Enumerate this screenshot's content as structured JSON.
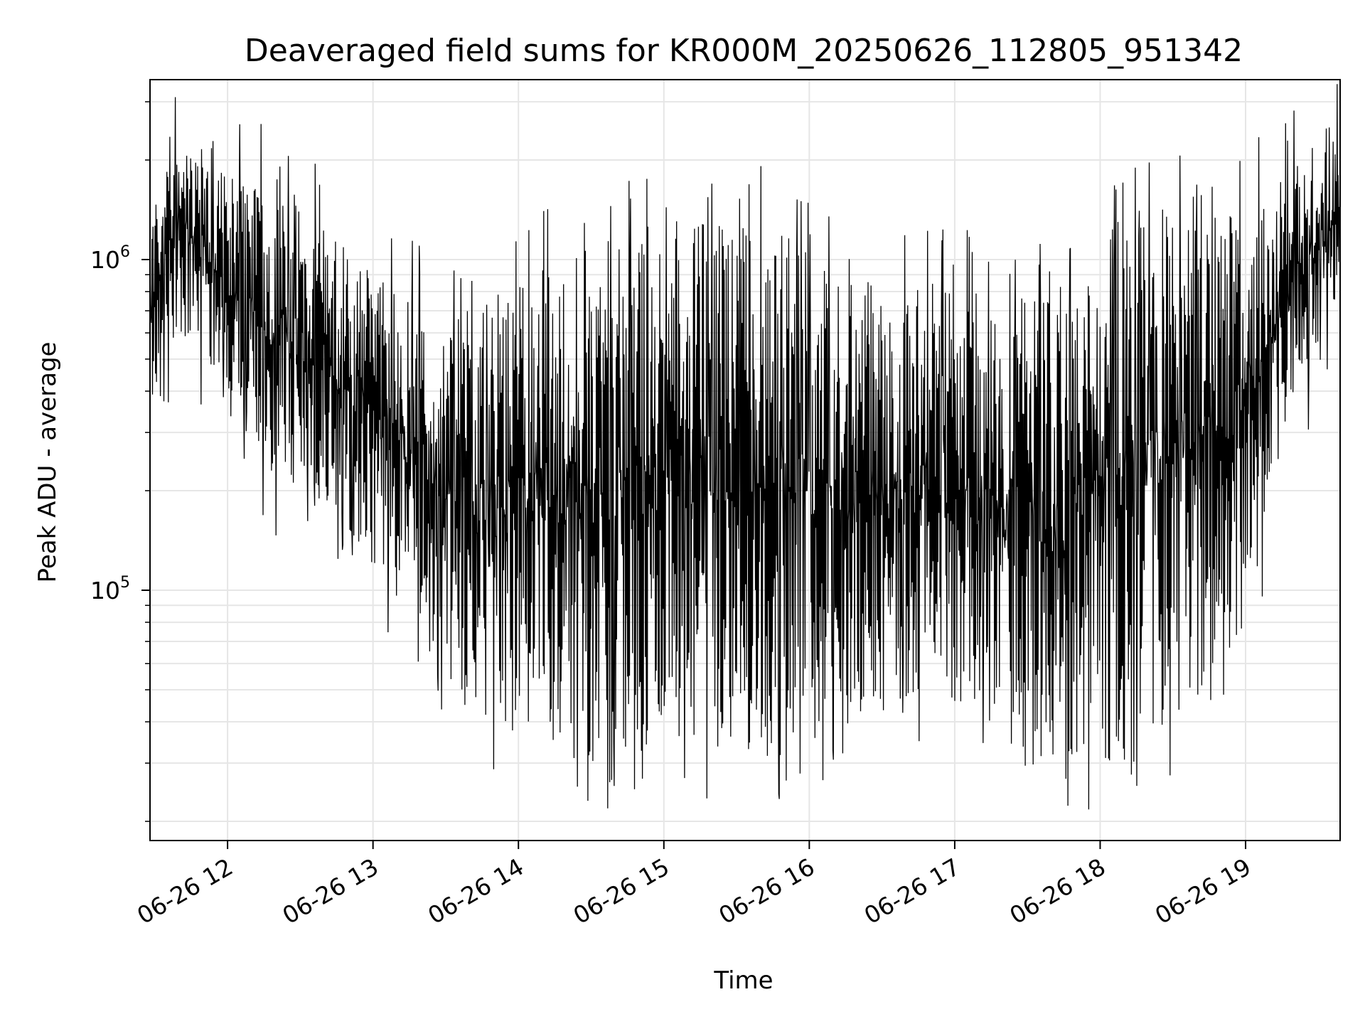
{
  "chart_data": {
    "type": "line",
    "title": "Deaveraged field sums for KR000M_20250626_112805_951342",
    "xlabel": "Time",
    "ylabel": "Peak ADU - average",
    "y_scale": "log",
    "ylim": [
      17500,
      3500000
    ],
    "xlim": [
      "06-26 11:28",
      "06-26 19:39"
    ],
    "x_ticks": [
      "06-26 12",
      "06-26 13",
      "06-26 14",
      "06-26 15",
      "06-26 16",
      "06-26 17",
      "06-26 18",
      "06-26 19"
    ],
    "y_ticks": [
      {
        "base": "10",
        "exp": "5",
        "value": 100000
      },
      {
        "base": "10",
        "exp": "6",
        "value": 1000000
      }
    ],
    "grid": true,
    "line_color": "#000000",
    "series": [
      {
        "x": [
          "06-26 11:28",
          "06-26 11:40",
          "06-26 12:00",
          "06-26 12:20",
          "06-26 12:40",
          "06-26 13:00",
          "06-26 13:20",
          "06-26 13:40",
          "06-26 14:00",
          "06-26 14:20",
          "06-26 14:40",
          "06-26 15:00",
          "06-26 15:20",
          "06-26 15:40",
          "06-26 16:00",
          "06-26 16:20",
          "06-26 16:40",
          "06-26 17:00",
          "06-26 17:20",
          "06-26 17:40",
          "06-26 18:00",
          "06-26 18:20",
          "06-26 18:40",
          "06-26 19:00",
          "06-26 19:20",
          "06-26 19:39"
        ],
        "upper": [
          1300000,
          2600000,
          1800000,
          1700000,
          1300000,
          900000,
          750000,
          650000,
          850000,
          1100000,
          1200000,
          1300000,
          1350000,
          1300000,
          1100000,
          900000,
          800000,
          850000,
          750000,
          800000,
          1050000,
          1400000,
          1600000,
          1600000,
          1900000,
          2800000
        ],
        "lower": [
          300000,
          600000,
          400000,
          200000,
          180000,
          120000,
          80000,
          40000,
          35000,
          30000,
          30000,
          30000,
          30000,
          30000,
          33000,
          40000,
          45000,
          45000,
          32000,
          28000,
          28000,
          35000,
          45000,
          80000,
          350000,
          700000
        ]
      }
    ]
  }
}
